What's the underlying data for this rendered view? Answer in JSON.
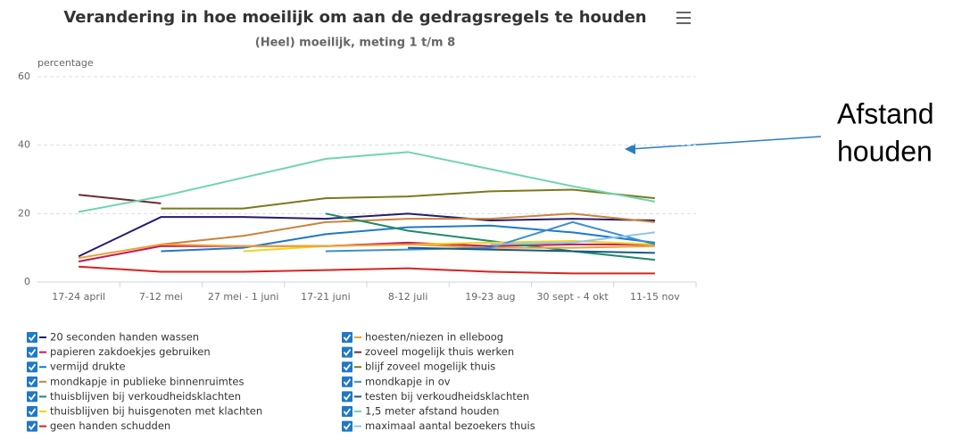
{
  "chart_data": {
    "type": "line",
    "title": "Verandering in hoe moeilijk om aan de gedragsregels te houden",
    "subtitle": "(Heel) moeilijk, meting 1 t/m 8",
    "y_label": "percentage",
    "annotation": [
      "Afstand",
      "houden"
    ],
    "categories": [
      "17-24 april",
      "7-12 mei",
      "27 mei - 1 juni",
      "17-21 juni",
      "8-12 juli",
      "19-23 aug",
      "30 sept - 4 okt",
      "11-15 nov"
    ],
    "ylim": [
      0,
      60
    ],
    "yticks": [
      0,
      20,
      40,
      60
    ],
    "grid": true,
    "series": [
      {
        "name": "20 seconden handen wassen",
        "color": "#2a1a6e",
        "values": [
          7.5,
          19,
          19,
          18.5,
          20,
          18,
          18.5,
          18
        ]
      },
      {
        "name": "papieren zakdoekjes gebruiken",
        "color": "#c0185a",
        "values": [
          6,
          10.5,
          10.5,
          10.5,
          11.5,
          10.5,
          11,
          11
        ]
      },
      {
        "name": "vermijd drukte",
        "color": "#1f78c8",
        "values": [
          null,
          9,
          10,
          14,
          16,
          16.5,
          14.5,
          11.5
        ]
      },
      {
        "name": "mondkapje in publieke binnenruimtes",
        "color": "#c8843a",
        "values": [
          null,
          11,
          13.5,
          17.5,
          18.5,
          18.5,
          20,
          17.5
        ]
      },
      {
        "name": "thuisblijven bij verkoudheidsklachten",
        "color": "#1e8a6a",
        "values": [
          null,
          null,
          null,
          20,
          15,
          12,
          9,
          6.5
        ]
      },
      {
        "name": "thuisblijven bij huisgenoten met klachten",
        "color": "#f2d21e",
        "values": [
          null,
          null,
          9,
          10.5,
          11,
          11.5,
          12,
          11
        ]
      },
      {
        "name": "geen handen schudden",
        "color": "#d8231e",
        "values": [
          4.5,
          3,
          3,
          3.5,
          4,
          3,
          2.5,
          2.5
        ]
      },
      {
        "name": "hoesten/niezen in elleboog",
        "color": "#f0a030",
        "values": [
          7,
          11,
          10.5,
          10.5,
          11,
          10,
          10,
          10.5
        ]
      },
      {
        "name": "zoveel mogelijk thuis werken",
        "color": "#6b2e2e",
        "values": [
          25.5,
          23,
          null,
          null,
          null,
          null,
          null,
          null
        ]
      },
      {
        "name": "blijf zoveel mogelijk thuis",
        "color": "#7a7a1e",
        "values": [
          null,
          21.5,
          21.5,
          24.5,
          25,
          26.5,
          27,
          24.5
        ]
      },
      {
        "name": "mondkapje in ov",
        "color": "#3b8fd0",
        "values": [
          null,
          null,
          null,
          9,
          9.5,
          10,
          17.5,
          11
        ]
      },
      {
        "name": "testen bij verkoudheidsklachten",
        "color": "#155a8a",
        "values": [
          null,
          null,
          null,
          null,
          10,
          9.5,
          9,
          8.5
        ]
      },
      {
        "name": "1,5 meter afstand houden",
        "color": "#6fd4b0",
        "values": [
          20.5,
          25,
          30.5,
          36,
          38,
          33,
          28,
          23.5
        ]
      },
      {
        "name": "maximaal aantal bezoekers thuis",
        "color": "#8ac8e8",
        "values": [
          null,
          null,
          null,
          null,
          null,
          11,
          11.5,
          14.5
        ]
      }
    ]
  }
}
